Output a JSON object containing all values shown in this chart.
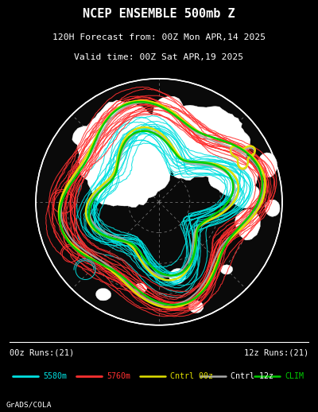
{
  "title1": "NCEP ENSEMBLE 500mb Z",
  "title2": "120H Forecast from: 00Z Mon APR,14 2025",
  "title3": "Valid time: 00Z Sat APR,19 2025",
  "bg_color": "#000000",
  "legend_items": [
    {
      "label": "5580m",
      "color": "#00e0e0",
      "lw": 2.0
    },
    {
      "label": "5760m",
      "color": "#ff3030",
      "lw": 2.0
    },
    {
      "label": "Cntrl 00z",
      "color": "#e0e000",
      "lw": 1.8
    },
    {
      "label": "Cntrl 12z",
      "color": "#aaaaaa",
      "lw": 1.8
    },
    {
      "label": "CLIM",
      "color": "#00cc00",
      "lw": 1.8
    }
  ],
  "label_left": "00z Runs:(21)",
  "label_right": "12z Runs:(21)",
  "credit": "GrADS/COLA",
  "cyan_color": "#00e0e0",
  "red_color": "#ff3030",
  "yellow_color": "#e0e000",
  "gray_color": "#aaaaaa",
  "green_color": "#00cc00",
  "white_color": "#ffffff"
}
